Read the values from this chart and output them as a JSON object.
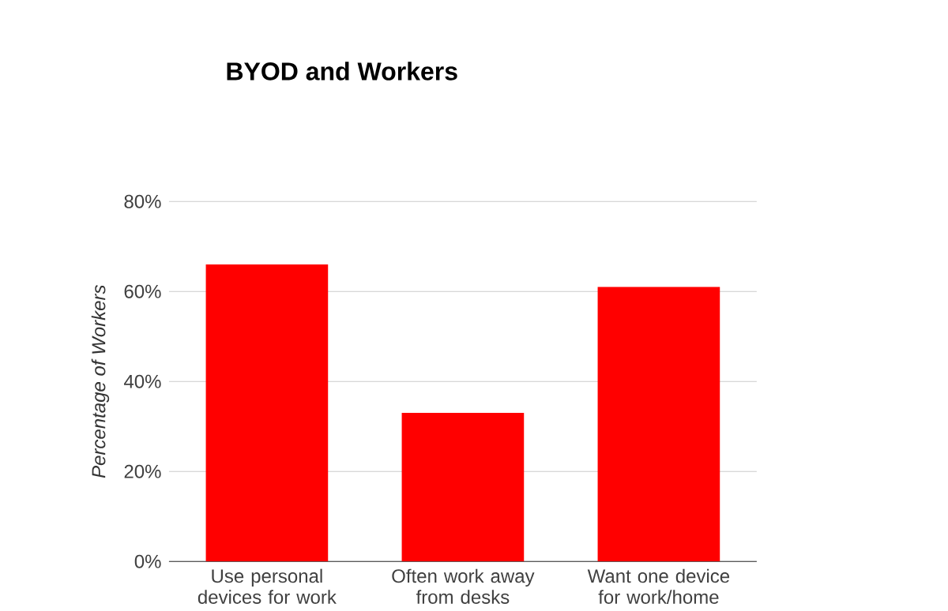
{
  "chart_data": {
    "type": "bar",
    "title": "BYOD and Workers",
    "ylabel": "Percentage of Workers",
    "categories": [
      "Use personal devices for work",
      "Often work away from desks",
      "Want one device for work/home"
    ],
    "values": [
      66,
      33,
      61
    ],
    "color": "#ff0000",
    "ylim": [
      0,
      80
    ],
    "yticks": [
      {
        "value": 0,
        "label": "0%"
      },
      {
        "value": 20,
        "label": "20%"
      },
      {
        "value": 40,
        "label": "40%"
      },
      {
        "value": 60,
        "label": "60%"
      },
      {
        "value": 80,
        "label": "80%"
      }
    ],
    "grid": "y"
  }
}
